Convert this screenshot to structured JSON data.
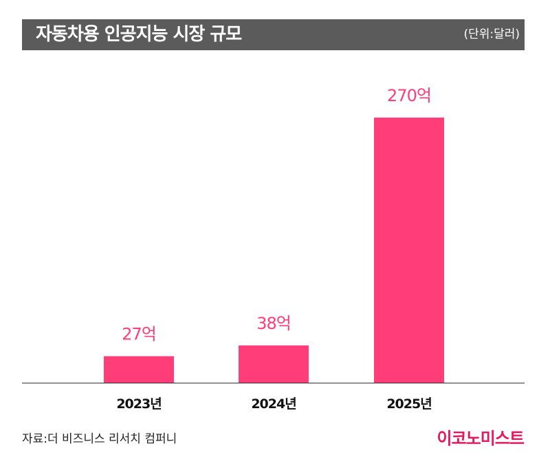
{
  "header": {
    "title": "자동차용 인공지능 시장 규모",
    "unit": "(단위:달러)"
  },
  "footer": {
    "source": "자료:더 비즈니스 리서치 컴퍼니",
    "logo": "이코노미스트"
  },
  "colors": {
    "bar": "#ff3d78",
    "label": "#ff3d78",
    "header_bg": "#5b5b5b",
    "logo": "#e8175d"
  },
  "chart_data": {
    "type": "bar",
    "categories": [
      "2023년",
      "2024년",
      "2025년"
    ],
    "values": [
      27,
      38,
      270
    ],
    "value_labels": [
      "27억",
      "38억",
      "270억"
    ],
    "ylim": [
      0,
      300
    ],
    "grid": false,
    "legend": "none"
  }
}
